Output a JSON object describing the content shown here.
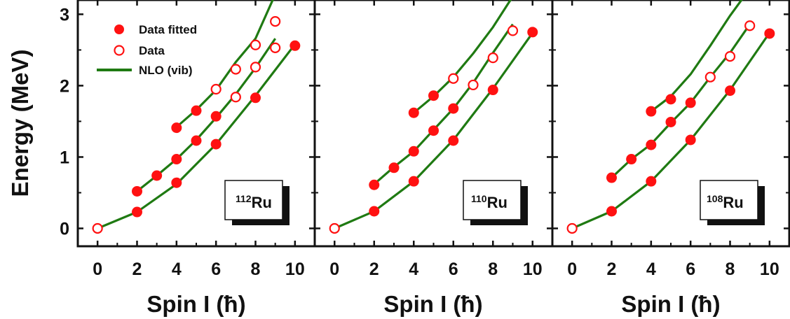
{
  "colors": {
    "fit": "#ff1111",
    "theory": "#1f7a12",
    "axis": "#111111"
  },
  "legend": {
    "filled_label": "Data fitted",
    "open_label": "Data",
    "line_label": "NLO (vib)"
  },
  "chart_data": [
    {
      "type": "line",
      "label_mass": "112",
      "label_element": "Ru",
      "xlabel": "Spin I (ħ)",
      "ylabel": "Energy (MeV)",
      "xlim": [
        -1,
        11
      ],
      "ylim": [
        -0.25,
        3.2
      ],
      "xticks": [
        0,
        2,
        4,
        6,
        8,
        10
      ],
      "yticks": [
        0,
        1,
        2,
        3
      ],
      "lines": [
        {
          "x": [
            0,
            2,
            4,
            6,
            8,
            10
          ],
          "y": [
            0.0,
            0.23,
            0.62,
            1.18,
            1.86,
            2.58
          ]
        },
        {
          "x": [
            2,
            3,
            4,
            5,
            6,
            7,
            8,
            9
          ],
          "y": [
            0.52,
            0.74,
            0.97,
            1.24,
            1.55,
            1.88,
            2.25,
            2.66
          ]
        },
        {
          "x": [
            4,
            5,
            6,
            7,
            8,
            9
          ],
          "y": [
            1.42,
            1.66,
            1.94,
            2.33,
            2.66,
            3.28
          ]
        }
      ],
      "points_filled": [
        {
          "x": 2,
          "y": 0.23
        },
        {
          "x": 4,
          "y": 0.64
        },
        {
          "x": 6,
          "y": 1.18
        },
        {
          "x": 8,
          "y": 1.83
        },
        {
          "x": 10,
          "y": 2.56
        },
        {
          "x": 2,
          "y": 0.52
        },
        {
          "x": 3,
          "y": 0.74
        },
        {
          "x": 4,
          "y": 0.97
        },
        {
          "x": 5,
          "y": 1.23
        },
        {
          "x": 6,
          "y": 1.57
        },
        {
          "x": 4,
          "y": 1.41
        },
        {
          "x": 5,
          "y": 1.65
        }
      ],
      "points_open": [
        {
          "x": 0,
          "y": 0.0
        },
        {
          "x": 7,
          "y": 1.84
        },
        {
          "x": 8,
          "y": 2.26
        },
        {
          "x": 9,
          "y": 2.53
        },
        {
          "x": 6,
          "y": 1.95
        },
        {
          "x": 7,
          "y": 2.23
        },
        {
          "x": 8,
          "y": 2.57
        },
        {
          "x": 9,
          "y": 2.9
        }
      ]
    },
    {
      "type": "line",
      "label_mass": "110",
      "label_element": "Ru",
      "xlabel": "Spin I (ħ)",
      "ylabel": "",
      "xlim": [
        -1,
        11
      ],
      "ylim": [
        -0.25,
        3.2
      ],
      "xticks": [
        0,
        2,
        4,
        6,
        8,
        10
      ],
      "yticks": [
        0,
        1,
        2,
        3
      ],
      "lines": [
        {
          "x": [
            0,
            2,
            4,
            6,
            8,
            10
          ],
          "y": [
            0.0,
            0.24,
            0.66,
            1.24,
            1.96,
            2.74
          ]
        },
        {
          "x": [
            2,
            3,
            4,
            5,
            6,
            7,
            8,
            9
          ],
          "y": [
            0.62,
            0.86,
            1.08,
            1.38,
            1.68,
            2.04,
            2.46,
            2.86
          ]
        },
        {
          "x": [
            4,
            5,
            6,
            7,
            8,
            9
          ],
          "y": [
            1.62,
            1.85,
            2.12,
            2.45,
            2.82,
            3.25
          ]
        }
      ],
      "points_filled": [
        {
          "x": 2,
          "y": 0.24
        },
        {
          "x": 4,
          "y": 0.66
        },
        {
          "x": 6,
          "y": 1.23
        },
        {
          "x": 8,
          "y": 1.94
        },
        {
          "x": 10,
          "y": 2.75
        },
        {
          "x": 2,
          "y": 0.61
        },
        {
          "x": 3,
          "y": 0.85
        },
        {
          "x": 4,
          "y": 1.08
        },
        {
          "x": 5,
          "y": 1.37
        },
        {
          "x": 6,
          "y": 1.68
        },
        {
          "x": 4,
          "y": 1.62
        },
        {
          "x": 5,
          "y": 1.86
        }
      ],
      "points_open": [
        {
          "x": 0,
          "y": 0.0
        },
        {
          "x": 6,
          "y": 2.1
        },
        {
          "x": 7,
          "y": 2.01
        },
        {
          "x": 8,
          "y": 2.39
        },
        {
          "x": 9,
          "y": 2.77
        }
      ]
    },
    {
      "type": "line",
      "label_mass": "108",
      "label_element": "Ru",
      "xlabel": "Spin I (ħ)",
      "ylabel": "",
      "xlim": [
        -1,
        11
      ],
      "ylim": [
        -0.25,
        3.2
      ],
      "xticks": [
        0,
        2,
        4,
        6,
        8,
        10
      ],
      "yticks": [
        0,
        1,
        2,
        3
      ],
      "lines": [
        {
          "x": [
            0,
            2,
            4,
            6,
            8,
            10
          ],
          "y": [
            0.0,
            0.24,
            0.66,
            1.24,
            1.94,
            2.74
          ]
        },
        {
          "x": [
            2,
            3,
            4,
            5,
            6,
            7,
            8,
            9
          ],
          "y": [
            0.71,
            0.97,
            1.18,
            1.48,
            1.76,
            2.12,
            2.46,
            2.86
          ]
        },
        {
          "x": [
            4,
            5,
            6,
            7,
            8,
            9
          ],
          "y": [
            1.64,
            1.85,
            2.16,
            2.56,
            2.98,
            3.36
          ]
        }
      ],
      "points_filled": [
        {
          "x": 2,
          "y": 0.24
        },
        {
          "x": 4,
          "y": 0.66
        },
        {
          "x": 6,
          "y": 1.24
        },
        {
          "x": 8,
          "y": 1.93
        },
        {
          "x": 10,
          "y": 2.73
        },
        {
          "x": 2,
          "y": 0.71
        },
        {
          "x": 3,
          "y": 0.97
        },
        {
          "x": 4,
          "y": 1.17
        },
        {
          "x": 5,
          "y": 1.49
        },
        {
          "x": 6,
          "y": 1.76
        },
        {
          "x": 4,
          "y": 1.64
        },
        {
          "x": 5,
          "y": 1.81
        }
      ],
      "points_open": [
        {
          "x": 0,
          "y": 0.0
        },
        {
          "x": 7,
          "y": 2.12
        },
        {
          "x": 8,
          "y": 2.41
        },
        {
          "x": 9,
          "y": 2.84
        }
      ]
    }
  ]
}
